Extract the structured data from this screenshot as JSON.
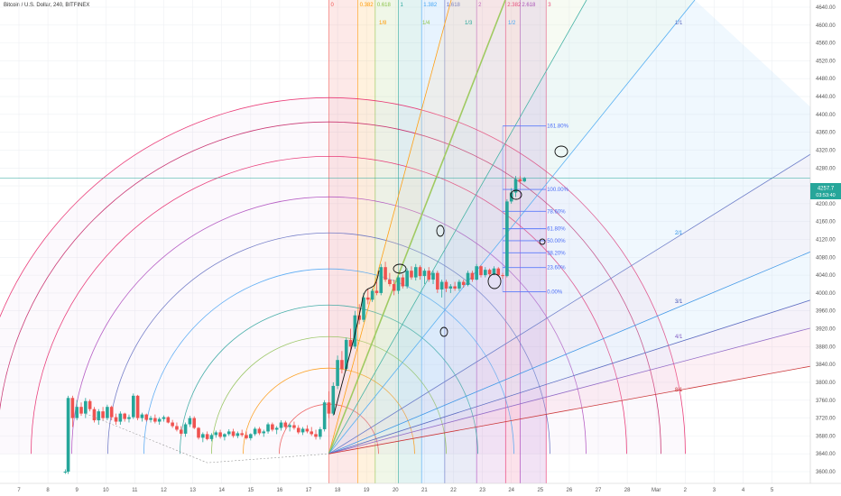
{
  "header": {
    "title": "Bitcoin / U.S. Dollar, 240, BITFINEX"
  },
  "price_tag": {
    "price": "4257.7",
    "countdown": "03:53:40"
  },
  "colors": {
    "up": "#26a69a",
    "down": "#ef5350",
    "accent": "#1e88e5"
  },
  "chart_data": {
    "type": "candlestick",
    "y_ticks": [
      3600,
      3640,
      3680,
      3720,
      3760,
      3800,
      3840,
      3880,
      3920,
      3960,
      4000,
      4040,
      4080,
      4120,
      4160,
      4200,
      4240,
      4280,
      4320,
      4360,
      4400,
      4440,
      4480,
      4520,
      4560,
      4600,
      4640
    ],
    "ylim": [
      3585,
      4655
    ],
    "x_ticks": [
      "7",
      "8",
      "9",
      "10",
      "11",
      "12",
      "13",
      "14",
      "15",
      "16",
      "17",
      "18",
      "19",
      "20",
      "21",
      "22",
      "23",
      "24",
      "25",
      "26",
      "27",
      "28",
      "Mar",
      "2",
      "3",
      "4",
      "5"
    ],
    "candles": [
      [
        8.6,
        3600,
        3605,
        3595,
        3600
      ],
      [
        8.7,
        3600,
        3770,
        3595,
        3765
      ],
      [
        8.85,
        3765,
        3770,
        3700,
        3720
      ],
      [
        9.0,
        3720,
        3760,
        3715,
        3745
      ],
      [
        9.15,
        3745,
        3755,
        3725,
        3730
      ],
      [
        9.3,
        3730,
        3765,
        3720,
        3758
      ],
      [
        9.45,
        3758,
        3762,
        3735,
        3740
      ],
      [
        9.6,
        3740,
        3745,
        3710,
        3715
      ],
      [
        9.75,
        3715,
        3740,
        3705,
        3735
      ],
      [
        9.9,
        3735,
        3745,
        3715,
        3720
      ],
      [
        10.05,
        3720,
        3750,
        3715,
        3745
      ],
      [
        10.2,
        3745,
        3748,
        3715,
        3722
      ],
      [
        10.35,
        3722,
        3730,
        3705,
        3712
      ],
      [
        10.5,
        3712,
        3735,
        3705,
        3730
      ],
      [
        10.65,
        3730,
        3732,
        3712,
        3718
      ],
      [
        10.8,
        3718,
        3728,
        3710,
        3722
      ],
      [
        10.95,
        3722,
        3775,
        3718,
        3770
      ],
      [
        11.1,
        3770,
        3772,
        3715,
        3720
      ],
      [
        11.25,
        3720,
        3732,
        3712,
        3728
      ],
      [
        11.4,
        3728,
        3730,
        3712,
        3716
      ],
      [
        11.55,
        3716,
        3725,
        3710,
        3720
      ],
      [
        11.7,
        3720,
        3728,
        3708,
        3712
      ],
      [
        11.85,
        3712,
        3722,
        3705,
        3718
      ],
      [
        12.0,
        3718,
        3726,
        3712,
        3722
      ],
      [
        12.15,
        3722,
        3724,
        3708,
        3710
      ],
      [
        12.3,
        3710,
        3716,
        3698,
        3702
      ],
      [
        12.45,
        3702,
        3710,
        3690,
        3694
      ],
      [
        12.6,
        3694,
        3702,
        3680,
        3685
      ],
      [
        12.75,
        3685,
        3710,
        3678,
        3706
      ],
      [
        12.9,
        3706,
        3725,
        3700,
        3720
      ],
      [
        13.05,
        3720,
        3724,
        3695,
        3698
      ],
      [
        13.2,
        3698,
        3700,
        3672,
        3676
      ],
      [
        13.35,
        3676,
        3688,
        3666,
        3684
      ],
      [
        13.5,
        3684,
        3690,
        3670,
        3673
      ],
      [
        13.65,
        3673,
        3686,
        3668,
        3682
      ],
      [
        13.8,
        3682,
        3692,
        3676,
        3688
      ],
      [
        13.95,
        3688,
        3694,
        3674,
        3678
      ],
      [
        14.1,
        3678,
        3686,
        3670,
        3684
      ],
      [
        14.25,
        3684,
        3695,
        3680,
        3690
      ],
      [
        14.4,
        3690,
        3696,
        3676,
        3680
      ],
      [
        14.55,
        3680,
        3690,
        3675,
        3686
      ],
      [
        14.7,
        3686,
        3694,
        3678,
        3682
      ],
      [
        14.85,
        3682,
        3690,
        3672,
        3675
      ],
      [
        15.0,
        3675,
        3686,
        3670,
        3684
      ],
      [
        15.15,
        3684,
        3700,
        3680,
        3696
      ],
      [
        15.3,
        3696,
        3700,
        3682,
        3686
      ],
      [
        15.45,
        3686,
        3694,
        3678,
        3690
      ],
      [
        15.6,
        3690,
        3710,
        3685,
        3706
      ],
      [
        15.75,
        3706,
        3710,
        3690,
        3694
      ],
      [
        15.9,
        3694,
        3702,
        3684,
        3698
      ],
      [
        16.05,
        3698,
        3715,
        3692,
        3710
      ],
      [
        16.2,
        3710,
        3714,
        3696,
        3700
      ],
      [
        16.35,
        3700,
        3708,
        3690,
        3704
      ],
      [
        16.5,
        3704,
        3712,
        3694,
        3698
      ],
      [
        16.65,
        3698,
        3704,
        3684,
        3688
      ],
      [
        16.8,
        3688,
        3700,
        3682,
        3696
      ],
      [
        16.95,
        3696,
        3704,
        3686,
        3690
      ],
      [
        17.1,
        3690,
        3700,
        3680,
        3684
      ],
      [
        17.25,
        3684,
        3694,
        3672,
        3678
      ],
      [
        17.4,
        3678,
        3700,
        3672,
        3695
      ],
      [
        17.55,
        3695,
        3760,
        3690,
        3755
      ],
      [
        17.7,
        3755,
        3780,
        3720,
        3730
      ],
      [
        17.85,
        3730,
        3800,
        3725,
        3792
      ],
      [
        18.0,
        3792,
        3860,
        3785,
        3850
      ],
      [
        18.15,
        3850,
        3870,
        3820,
        3830
      ],
      [
        18.3,
        3830,
        3900,
        3825,
        3895
      ],
      [
        18.45,
        3895,
        3920,
        3870,
        3880
      ],
      [
        18.6,
        3880,
        3960,
        3875,
        3950
      ],
      [
        18.75,
        3950,
        3975,
        3930,
        3940
      ],
      [
        18.9,
        3940,
        4000,
        3935,
        3990
      ],
      [
        19.05,
        3990,
        4010,
        3975,
        3985
      ],
      [
        19.2,
        3985,
        4010,
        3980,
        4005
      ],
      [
        19.35,
        4005,
        4025,
        3995,
        4000
      ],
      [
        19.5,
        4000,
        4065,
        3995,
        4058
      ],
      [
        19.65,
        4058,
        4070,
        4025,
        4030
      ],
      [
        19.8,
        4030,
        4045,
        4015,
        4020
      ],
      [
        19.95,
        4020,
        4030,
        3995,
        4005
      ],
      [
        20.1,
        4005,
        4040,
        3998,
        4035
      ],
      [
        20.25,
        4035,
        4042,
        4010,
        4015
      ],
      [
        20.4,
        4015,
        4055,
        4010,
        4050
      ],
      [
        20.55,
        4050,
        4060,
        4030,
        4035
      ],
      [
        20.7,
        4035,
        4065,
        4028,
        4058
      ],
      [
        20.85,
        4058,
        4062,
        4030,
        4038
      ],
      [
        21.0,
        4038,
        4055,
        4020,
        4050
      ],
      [
        21.15,
        4050,
        4058,
        4025,
        4030
      ],
      [
        21.3,
        4030,
        4050,
        4020,
        4045
      ],
      [
        21.45,
        4045,
        4050,
        4000,
        4008
      ],
      [
        21.6,
        4008,
        4030,
        3990,
        4025
      ],
      [
        21.75,
        4025,
        4030,
        4002,
        4010
      ],
      [
        21.9,
        4010,
        4020,
        4000,
        4015
      ],
      [
        22.05,
        4015,
        4025,
        4005,
        4010
      ],
      [
        22.2,
        4010,
        4030,
        4005,
        4025
      ],
      [
        22.35,
        4025,
        4030,
        4012,
        4018
      ],
      [
        22.5,
        4018,
        4050,
        4015,
        4045
      ],
      [
        22.65,
        4045,
        4050,
        4025,
        4030
      ],
      [
        22.8,
        4030,
        4065,
        4028,
        4060
      ],
      [
        22.95,
        4060,
        4062,
        4035,
        4040
      ],
      [
        23.1,
        4040,
        4058,
        4035,
        4052
      ],
      [
        23.25,
        4052,
        4055,
        4038,
        4042
      ],
      [
        23.4,
        4042,
        4060,
        4040,
        4055
      ],
      [
        23.55,
        4055,
        4058,
        4038,
        4040
      ],
      [
        23.7,
        4040,
        4045,
        4032,
        4038
      ],
      [
        23.85,
        4038,
        4210,
        4035,
        4205
      ],
      [
        24.0,
        4205,
        4235,
        4200,
        4225
      ],
      [
        24.15,
        4225,
        4262,
        4215,
        4255
      ],
      [
        24.3,
        4255,
        4262,
        4245,
        4250
      ],
      [
        24.45,
        4250,
        4260,
        4248,
        4257
      ]
    ],
    "levels": {
      "fib_time": [
        {
          "label": "0",
          "day": 17.7,
          "color": "#ef5350"
        },
        {
          "label": "0.382",
          "day": 18.7,
          "color": "#ff9800"
        },
        {
          "label": "0.618",
          "day": 19.3,
          "color": "#8bc34a"
        },
        {
          "label": "1",
          "day": 20.1,
          "color": "#26a69a"
        },
        {
          "label": "1.382",
          "day": 20.9,
          "color": "#42a5f5"
        },
        {
          "label": "1.618",
          "day": 21.7,
          "color": "#5c6bc0"
        },
        {
          "label": "2",
          "day": 22.8,
          "color": "#ab47bc"
        },
        {
          "label": "2.382",
          "day": 23.8,
          "color": "#e91e63"
        },
        {
          "label": "2.618",
          "day": 24.3,
          "color": "#9c27b0"
        },
        {
          "label": "3",
          "day": 25.2,
          "color": "#e91e63"
        }
      ],
      "retracement": [
        {
          "label": "161.80%",
          "price": 4374
        },
        {
          "label": "100.00%",
          "price": 4232
        },
        {
          "label": "78.60%",
          "price": 4183
        },
        {
          "label": "61.80%",
          "price": 4144
        },
        {
          "label": "50.00%",
          "price": 4117
        },
        {
          "label": "38.20%",
          "price": 4090
        },
        {
          "label": "23.60%",
          "price": 4057
        },
        {
          "label": "0.00%",
          "price": 4003
        }
      ],
      "gann_fan": [
        {
          "label": "1/8",
          "color": "#ff9800"
        },
        {
          "label": "1/4",
          "color": "#8bc34a"
        },
        {
          "label": "1/3",
          "color": "#26a69a"
        },
        {
          "label": "1/2",
          "color": "#42a5f5"
        },
        {
          "label": "1/1",
          "color": "#5c6bc0"
        },
        {
          "label": "2/1",
          "color": "#1e88e5"
        },
        {
          "label": "3/1",
          "color": "#3f51b5"
        },
        {
          "label": "4/1",
          "color": "#7e57c2"
        },
        {
          "label": "8/1",
          "color": "#c62828"
        }
      ]
    }
  }
}
